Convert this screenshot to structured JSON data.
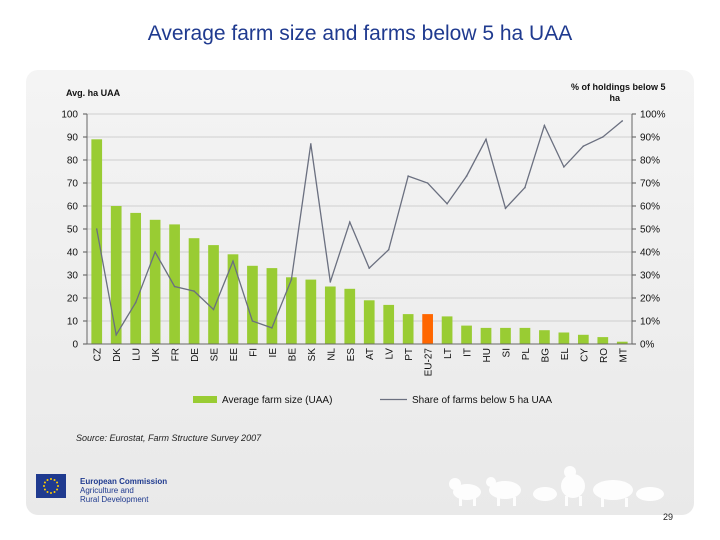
{
  "title": "Average farm size and farms below 5 ha UAA",
  "source": "Source: Eurostat, Farm Structure Survey 2007",
  "logo": {
    "line1": "European Commission",
    "line2": "Agriculture and",
    "line3": "Rural Development"
  },
  "page_number": "29",
  "colors": {
    "title": "#1f3a8f",
    "bar": "#99cc33",
    "bar_highlight": "#ff6600",
    "line": "#6b7080",
    "panel": "#ececec"
  },
  "chart_data": {
    "type": "bar",
    "title": "",
    "y_left_label": "Avg. ha UAA",
    "y_right_label": "% of holdings below 5 ha",
    "ylim": [
      0,
      100
    ],
    "yticks_left": [
      "0",
      "10",
      "20",
      "30",
      "40",
      "50",
      "60",
      "70",
      "80",
      "90",
      "100"
    ],
    "yticks_right": [
      "0%",
      "10%",
      "20%",
      "30%",
      "40%",
      "50%",
      "60%",
      "70%",
      "80%",
      "90%",
      "100%"
    ],
    "grid": true,
    "legend_position": "bottom",
    "highlight_category": "EU-27",
    "categories": [
      "CZ",
      "DK",
      "LU",
      "UK",
      "FR",
      "DE",
      "SE",
      "EE",
      "FI",
      "IE",
      "BE",
      "SK",
      "NL",
      "ES",
      "AT",
      "LV",
      "PT",
      "EU-27",
      "LT",
      "IT",
      "HU",
      "SI",
      "PL",
      "BG",
      "EL",
      "CY",
      "RO",
      "MT"
    ],
    "series": [
      {
        "name": "Average farm size (UAA)",
        "type": "bar",
        "axis": "left",
        "values": [
          89,
          60,
          57,
          54,
          52,
          46,
          43,
          39,
          34,
          33,
          29,
          28,
          25,
          24,
          19,
          17,
          13,
          13,
          12,
          8,
          7,
          7,
          7,
          6,
          5,
          4,
          3,
          1
        ]
      },
      {
        "name": "Share of farms below 5 ha UAA",
        "type": "line",
        "axis": "right",
        "unit": "%",
        "values": [
          50,
          4,
          18,
          40,
          25,
          23,
          15,
          36,
          10,
          7,
          28,
          87,
          27,
          53,
          33,
          41,
          73,
          70,
          61,
          73,
          89,
          59,
          68,
          95,
          77,
          86,
          90,
          97
        ]
      }
    ]
  }
}
